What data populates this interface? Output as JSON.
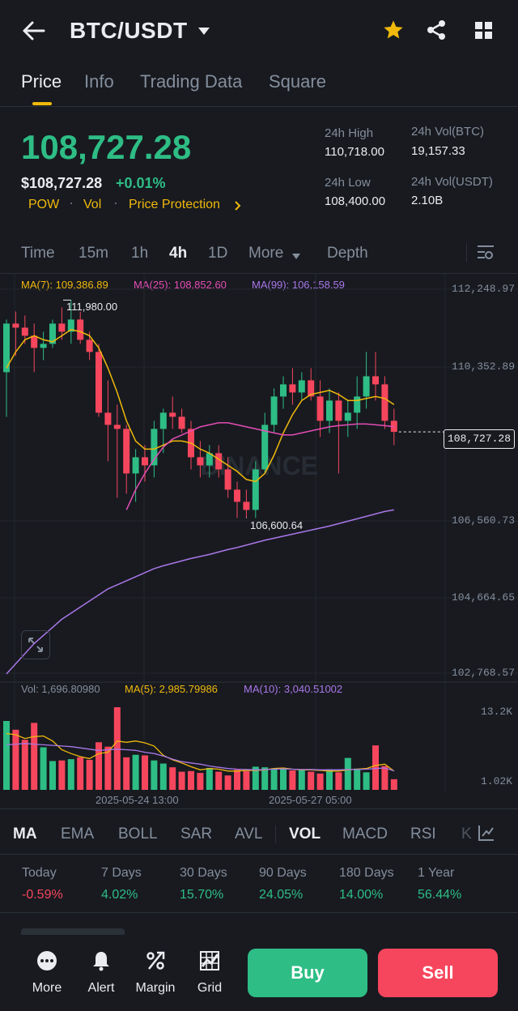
{
  "header": {
    "title": "BTC/USDT"
  },
  "tabs": [
    "Price",
    "Info",
    "Trading Data",
    "Square"
  ],
  "ticker": {
    "last_price": "108,727.28",
    "usd_price": "$108,727.28",
    "change": "+0.01%",
    "tags": [
      "POW",
      "Vol",
      "Price Protection"
    ],
    "stats": {
      "high_label": "24h High",
      "high": "110,718.00",
      "low_label": "24h Low",
      "low": "108,400.00",
      "vol_btc_label": "24h Vol(BTC)",
      "vol_btc": "19,157.33",
      "vol_usdt_label": "24h Vol(USDT)",
      "vol_usdt": "2.10B"
    }
  },
  "timeframes": [
    "Time",
    "15m",
    "1h",
    "4h",
    "1D",
    "More",
    "Depth"
  ],
  "active_timeframe": "4h",
  "chart_labels": {
    "ma7": "MA(7): 109,386.89",
    "ma25": "MA(25): 108,852.60",
    "ma99": "MA(99): 106,158.59",
    "price_axis": [
      "112,248.97",
      "110,352.89",
      "106,560.73",
      "104,664.65",
      "102,768.57"
    ],
    "current_price_tag": "108,727.28",
    "high_marker": "111,980.00",
    "low_marker": "106,600.64",
    "watermark": "BINANCE",
    "vol_line": "Vol: 1,696.80980",
    "vol_ma5": "MA(5): 2,985.79986",
    "vol_ma10": "MA(10): 3,040.51002",
    "vol_axis_top": "13.2K",
    "vol_axis_bottom": "1.02K",
    "time_labels": [
      "2025-05-24 13:00",
      "2025-05-27 05:00"
    ]
  },
  "chart_data": {
    "type": "candlestick",
    "interval": "4h",
    "price_axis_ticks": [
      112248.97,
      110352.89,
      106560.73,
      104664.65,
      102768.57
    ],
    "ohlc": [
      [
        110200,
        111500,
        109100,
        111400
      ],
      [
        111400,
        111700,
        110600,
        111300
      ],
      [
        111300,
        111600,
        110900,
        111100
      ],
      [
        111100,
        111400,
        110200,
        110800
      ],
      [
        110800,
        111200,
        110500,
        110900
      ],
      [
        110900,
        111500,
        110800,
        111400
      ],
      [
        111400,
        111800,
        111000,
        111200
      ],
      [
        111200,
        111980,
        110900,
        111500
      ],
      [
        111500,
        111700,
        110900,
        111000
      ],
      [
        111000,
        111200,
        110500,
        110700
      ],
      [
        110700,
        110900,
        109100,
        109200
      ],
      [
        109200,
        110000,
        108000,
        108900
      ],
      [
        108900,
        109400,
        107100,
        108800
      ],
      [
        108800,
        108900,
        107200,
        107700
      ],
      [
        107700,
        108300,
        107000,
        108100
      ],
      [
        108100,
        108400,
        107500,
        107900
      ],
      [
        107900,
        109000,
        107600,
        108800
      ],
      [
        108800,
        109300,
        108200,
        109200
      ],
      [
        109200,
        109600,
        108800,
        109100
      ],
      [
        109100,
        109300,
        108700,
        108800
      ],
      [
        108800,
        109000,
        107800,
        108100
      ],
      [
        108100,
        108500,
        107600,
        107900
      ],
      [
        107900,
        108400,
        107600,
        108200
      ],
      [
        108200,
        108400,
        107600,
        107800
      ],
      [
        107800,
        108100,
        107100,
        107300
      ],
      [
        107300,
        107500,
        106600,
        107000
      ],
      [
        107000,
        107300,
        106600,
        106800
      ],
      [
        106800,
        108000,
        106600,
        107800
      ],
      [
        107800,
        109200,
        107700,
        108900
      ],
      [
        108900,
        109800,
        108700,
        109600
      ],
      [
        109600,
        110100,
        109300,
        109900
      ],
      [
        109900,
        110300,
        109400,
        109700
      ],
      [
        109700,
        110200,
        109500,
        110000
      ],
      [
        110000,
        110300,
        109500,
        109600
      ],
      [
        109600,
        110000,
        108600,
        109000
      ],
      [
        109000,
        109800,
        108700,
        109500
      ],
      [
        109500,
        109700,
        107700,
        109000
      ],
      [
        109000,
        109500,
        108600,
        109200
      ],
      [
        109200,
        110100,
        108800,
        109600
      ],
      [
        109600,
        110700,
        109300,
        110100
      ],
      [
        110100,
        110700,
        109500,
        109900
      ],
      [
        109900,
        110100,
        108800,
        109000
      ],
      [
        109000,
        109300,
        108400,
        108727
      ]
    ],
    "ma7": [
      110300,
      110700,
      111000,
      111100,
      111000,
      110950,
      111100,
      111250,
      111200,
      111100,
      110800,
      110300,
      109700,
      109000,
      108500,
      108300,
      108300,
      108400,
      108500,
      108500,
      108450,
      108300,
      108200,
      108050,
      107900,
      107750,
      107550,
      107500,
      107700,
      108150,
      108700,
      109150,
      109500,
      109650,
      109700,
      109750,
      109650,
      109500,
      109500,
      109550,
      109600,
      109550,
      109400
    ],
    "ma25": [
      null,
      null,
      null,
      null,
      null,
      null,
      null,
      null,
      null,
      null,
      null,
      null,
      null,
      106800,
      107300,
      107700,
      108050,
      108350,
      108550,
      108650,
      108750,
      108850,
      108900,
      108950,
      108950,
      108900,
      108850,
      108800,
      108750,
      108700,
      108650,
      108650,
      108700,
      108750,
      108800,
      108850,
      108880,
      108900,
      108920,
      108920,
      108900,
      108880,
      108850
    ],
    "ma99": [
      102750,
      103000,
      103250,
      103500,
      103700,
      103900,
      104100,
      104250,
      104400,
      104550,
      104700,
      104850,
      104950,
      105050,
      105150,
      105250,
      105350,
      105420,
      105480,
      105540,
      105600,
      105650,
      105700,
      105760,
      105820,
      105870,
      105930,
      105990,
      106050,
      106100,
      106150,
      106200,
      106250,
      106300,
      106350,
      106400,
      106460,
      106520,
      106580,
      106640,
      106700,
      106760,
      106800
    ],
    "volume": [
      11000,
      9600,
      8000,
      10700,
      6800,
      4600,
      4700,
      4900,
      5200,
      4800,
      7600,
      6900,
      13200,
      5200,
      5600,
      5500,
      4700,
      4200,
      3600,
      2900,
      3000,
      2700,
      3500,
      2900,
      2300,
      3200,
      3000,
      3700,
      3600,
      3300,
      3400,
      3100,
      3200,
      2900,
      2600,
      3300,
      2800,
      5100,
      3400,
      2800,
      7100,
      3800,
      1697
    ],
    "vol_ma5": [
      9000,
      8800,
      8200,
      8500,
      8600,
      7800,
      6400,
      5800,
      5300,
      5000,
      5800,
      6000,
      7800,
      7600,
      7800,
      7500,
      7000,
      5500,
      4800,
      4300,
      3700,
      3200,
      3400,
      3300,
      3000,
      3000,
      3100,
      3100,
      3200,
      3400,
      3500,
      3300,
      3200,
      3200,
      3100,
      3000,
      3000,
      3200,
      3300,
      3400,
      3900,
      4100,
      2986
    ],
    "vol_ma10": [
      7200,
      7300,
      7400,
      7300,
      7200,
      7100,
      7000,
      6900,
      6700,
      6500,
      6300,
      6400,
      6500,
      6400,
      6300,
      6000,
      5800,
      5400,
      4900,
      4500,
      4300,
      4100,
      3800,
      3600,
      3400,
      3300,
      3250,
      3200,
      3250,
      3300,
      3350,
      3300,
      3250,
      3250,
      3200,
      3200,
      3200,
      3250,
      3250,
      3300,
      3400,
      3500,
      3041
    ],
    "x_labels": [
      "2025-05-24 13:00",
      "2025-05-27 05:00"
    ]
  },
  "indicators": [
    "MA",
    "EMA",
    "BOLL",
    "SAR",
    "AVL",
    "VOL",
    "MACD",
    "RSI",
    "K"
  ],
  "performance": [
    {
      "label": "Today",
      "value": "-0.59%",
      "dir": "down"
    },
    {
      "label": "7 Days",
      "value": "4.02%",
      "dir": "up"
    },
    {
      "label": "30 Days",
      "value": "15.70%",
      "dir": "up"
    },
    {
      "label": "90 Days",
      "value": "24.05%",
      "dir": "up"
    },
    {
      "label": "180 Days",
      "value": "14.00%",
      "dir": "up"
    },
    {
      "label": "1 Year",
      "value": "56.44%",
      "dir": "up"
    }
  ],
  "bottom_bar": {
    "items": [
      "More",
      "Alert",
      "Margin",
      "Grid"
    ],
    "buy_label": "Buy",
    "sell_label": "Sell"
  },
  "colors": {
    "up": "#2ebd85",
    "down": "#f6465d",
    "ma7": "#f0b90b",
    "ma25": "#e54db5",
    "ma99": "#a977e8",
    "accent": "#f0b90b"
  }
}
